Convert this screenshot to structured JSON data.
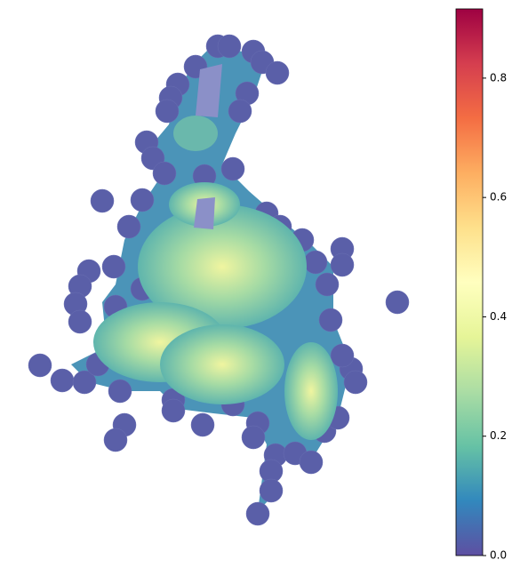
{
  "colorbar": {
    "colormap": "Spectral_r",
    "lim": [
      0,
      0.916
    ],
    "ticks": [
      {
        "value": 0,
        "label": "0.0"
      },
      0.2,
      0.4,
      0.6,
      0.8
    ]
  }
}
